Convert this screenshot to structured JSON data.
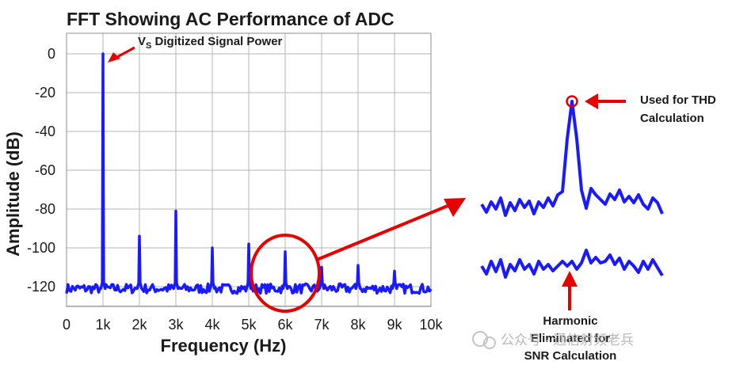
{
  "chart_data": {
    "type": "line",
    "title": "FFT Showing AC Performance of ADC",
    "xlabel": "Frequency (Hz)",
    "ylabel": "Amplitude (dB)",
    "xlim": [
      0,
      10000
    ],
    "ylim": [
      -130,
      0
    ],
    "x_ticks": [
      "0",
      "1k",
      "2k",
      "3k",
      "4k",
      "5k",
      "6k",
      "7k",
      "8k",
      "9k",
      "10k"
    ],
    "y_ticks": [
      "0",
      "-20",
      "-40",
      "-60",
      "-80",
      "-100",
      "-120"
    ],
    "grid": true,
    "series_color": "#1a1aff",
    "noise_floor_db": -121,
    "peaks": [
      {
        "x": 1000,
        "y": 0
      },
      {
        "x": 2000,
        "y": -94
      },
      {
        "x": 3000,
        "y": -81
      },
      {
        "x": 4000,
        "y": -100
      },
      {
        "x": 5000,
        "y": -98
      },
      {
        "x": 6000,
        "y": -102
      },
      {
        "x": 7000,
        "y": -110
      },
      {
        "x": 8000,
        "y": -109
      },
      {
        "x": 9000,
        "y": -112
      }
    ],
    "annotations": {
      "signal_label_main": "V",
      "signal_label_sub": "S",
      "signal_label_rest": " Digitized Signal Power",
      "thd_line1": "Used for THD",
      "thd_line2": "Calculation",
      "snr_line1": "Harmonic",
      "snr_line2": "Eliminated for",
      "snr_line3": "SNR Calculation"
    }
  },
  "watermark": "公众号 · 通信射频老兵"
}
